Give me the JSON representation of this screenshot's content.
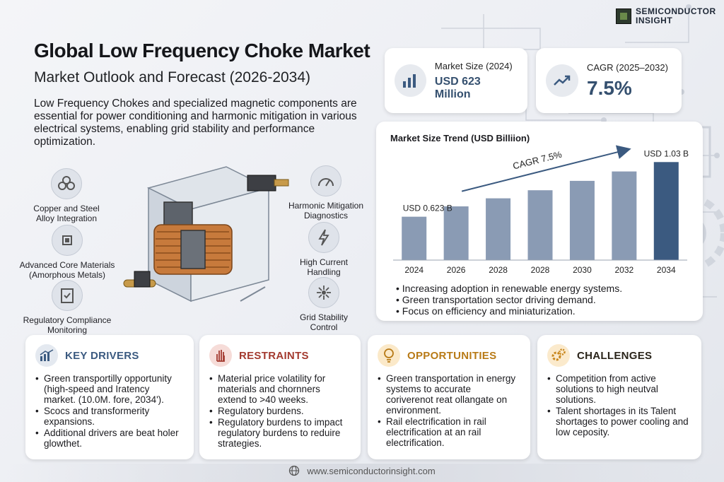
{
  "brand": {
    "line1": "SEMICONDUCTOR",
    "line2": "INSIGHT"
  },
  "header": {
    "title": "Global Low Frequency Choke Market",
    "subtitle": "Market Outlook and Forecast (2026-2034)",
    "intro": "Low Frequency Chokes and specialized magnetic components are essential for power conditioning and harmonic mitigation in various electrical systems, enabling grid stability and performance optimization."
  },
  "stats": {
    "market_size_label": "Market Size (2024)",
    "market_size_value": "USD 623 Million",
    "cagr_label": "CAGR (2025–2032)",
    "cagr_value": "7.5%"
  },
  "features": {
    "copper": "Copper and Steel Alloy Integration",
    "core": "Advanced Core Materials (Amorphous Metals)",
    "regulatory": "Regulatory Compliance Monitoring",
    "harmonic": "Harmonic Mitigation Diagnostics",
    "current": "High Current Handling",
    "grid": "Grid Stability Control"
  },
  "chart_data": {
    "type": "bar",
    "title": "Market Size Trend (USD Billiion)",
    "categories": [
      "2024",
      "2026",
      "2028",
      "2028",
      "2030",
      "2032",
      "2034"
    ],
    "values": [
      0.623,
      0.7,
      0.76,
      0.82,
      0.89,
      0.96,
      1.03
    ],
    "first_label": "USD 0.623 B",
    "last_label": "USD 1.03 B",
    "annotation": "CAGR 7.5%",
    "ylim": [
      0.3,
      1.1
    ],
    "bar_color": "#8a9bb4",
    "last_bar_color": "#3b5a80"
  },
  "chart_bullets": [
    "Increasing adoption in renewable energy systems.",
    "Green transportation sector driving demand.",
    "Focus on efficiency and miniaturization."
  ],
  "cards": {
    "drivers": {
      "title": "KEY DRIVERS",
      "color": "#3b5a80",
      "items": [
        "Green transportilly opportunity (high-speed and Iratency market. (10.0M. fore, 2034').",
        "Scocs and transformerity expansions.",
        "Additional drivers are beat holer glowthet."
      ]
    },
    "restraints": {
      "title": "RESTRAINTS",
      "color": "#a33a2f",
      "items": [
        "Material price volatility for materials and chornners extend to >40 weeks.",
        "Regulatory burdens.",
        "Regulatory burdens to impact regulatory burdens to reduire strategies."
      ]
    },
    "opportunities": {
      "title": "OPPORTUNITIES",
      "color": "#b87a16",
      "items": [
        "Green transportation in energy systems to accurate coriverenot reat ollangate on environment.",
        "Rail electrification in rail electrification at an rail electrification."
      ]
    },
    "challenges": {
      "title": "CHALLENGES",
      "color": "#3a2f1a",
      "items": [
        "Competition from active solutions to high neutval solutions.",
        "Talent shortages in its Talent shortages to power cooling and low ceposity."
      ]
    }
  },
  "footer": {
    "url": "www.semiconductorinsight.com"
  }
}
